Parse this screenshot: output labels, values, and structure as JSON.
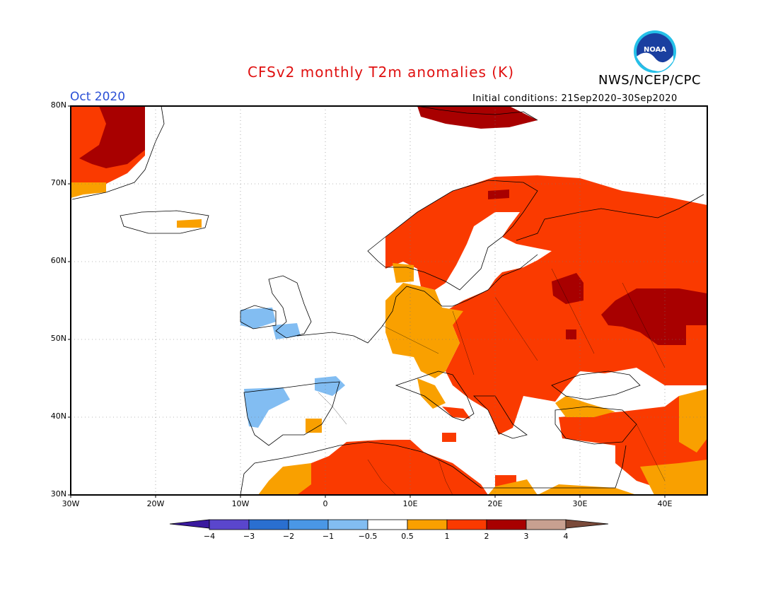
{
  "header": {
    "title": "CFSv2 monthly T2m anomalies (K)",
    "agency": "NWS/NCEP/CPC",
    "month": "Oct 2020",
    "initial_conditions": "Initial conditions: 21Sep2020–30Sep2020"
  },
  "logo": {
    "text": "NOAA"
  },
  "axes": {
    "y_ticks": [
      "80N",
      "70N",
      "60N",
      "50N",
      "40N",
      "30N"
    ],
    "x_ticks": [
      "30W",
      "20W",
      "10W",
      "0",
      "10E",
      "20E",
      "30E",
      "40E"
    ],
    "lon_range": [
      -30,
      45
    ],
    "lat_range": [
      30,
      80
    ]
  },
  "colorbar": {
    "labels": [
      "−4",
      "−3",
      "−2",
      "−1",
      "−0.5",
      "0.5",
      "1",
      "2",
      "3",
      "4"
    ],
    "colors": [
      "#3a1a9e",
      "#5a46cc",
      "#2a6fd0",
      "#4a97e6",
      "#82bdf2",
      "#ffffff",
      "#f9a000",
      "#fa3a00",
      "#a80000",
      "#c8a090",
      "#7a4a3a"
    ]
  },
  "anomaly_colors": {
    "cool": "#82bdf2",
    "warm_1": "#f9a000",
    "warm_2": "#fa3a00",
    "warm_3": "#a80000"
  }
}
